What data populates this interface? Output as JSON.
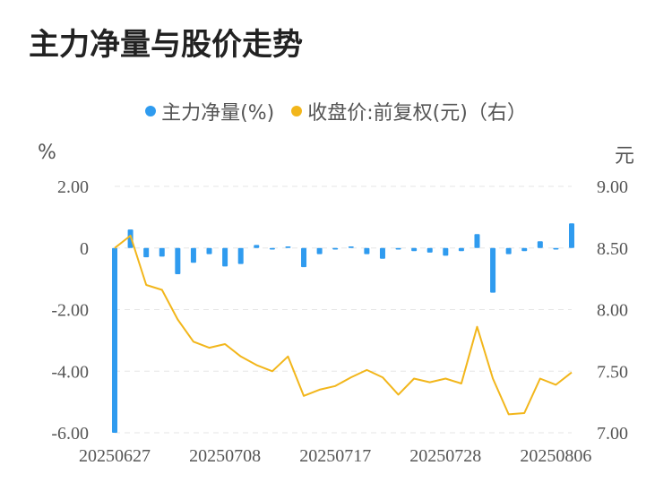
{
  "title": "主力净量与股价走势",
  "legend": [
    {
      "label": "主力净量(%)",
      "color": "#2f9bef"
    },
    {
      "label": "收盘价:前复权(元)（右）",
      "color": "#f2b61b"
    }
  ],
  "left_unit": "%",
  "right_unit": "元",
  "chart_data": {
    "type": "bar+line",
    "title": "主力净量与股价走势",
    "x_tick_labels": [
      "20250627",
      "20250708",
      "20250717",
      "20250728",
      "20250806"
    ],
    "y_left": {
      "label": "%",
      "ticks": [
        "2.00",
        "0",
        "-2.00",
        "-4.00",
        "-6.00"
      ],
      "range": [
        -6,
        2
      ]
    },
    "y_right": {
      "label": "元",
      "ticks": [
        "9.00",
        "8.50",
        "8.00",
        "7.50",
        "7.00"
      ],
      "range": [
        7,
        9
      ]
    },
    "grid": true,
    "legend_position": "top-center",
    "series": [
      {
        "name": "主力净量(%)",
        "type": "bar",
        "axis": "left",
        "color": "#2f9bef",
        "values": [
          -6.0,
          0.6,
          -0.3,
          -0.28,
          -0.85,
          -0.48,
          -0.2,
          -0.6,
          -0.52,
          0.1,
          -0.05,
          0.05,
          -0.62,
          -0.2,
          -0.05,
          0.05,
          -0.2,
          -0.35,
          -0.05,
          -0.1,
          -0.15,
          -0.25,
          -0.1,
          0.45,
          -1.45,
          -0.2,
          -0.1,
          0.22,
          -0.05,
          0.8
        ]
      },
      {
        "name": "收盘价:前复权(元)（右）",
        "type": "line",
        "axis": "right",
        "color": "#f2b61b",
        "values": [
          8.5,
          8.6,
          8.2,
          8.16,
          7.92,
          7.74,
          7.69,
          7.72,
          7.62,
          7.55,
          7.5,
          7.62,
          7.3,
          7.35,
          7.38,
          7.45,
          7.51,
          7.45,
          7.31,
          7.44,
          7.41,
          7.44,
          7.4,
          7.86,
          7.44,
          7.15,
          7.16,
          7.44,
          7.39,
          7.49
        ]
      }
    ]
  }
}
